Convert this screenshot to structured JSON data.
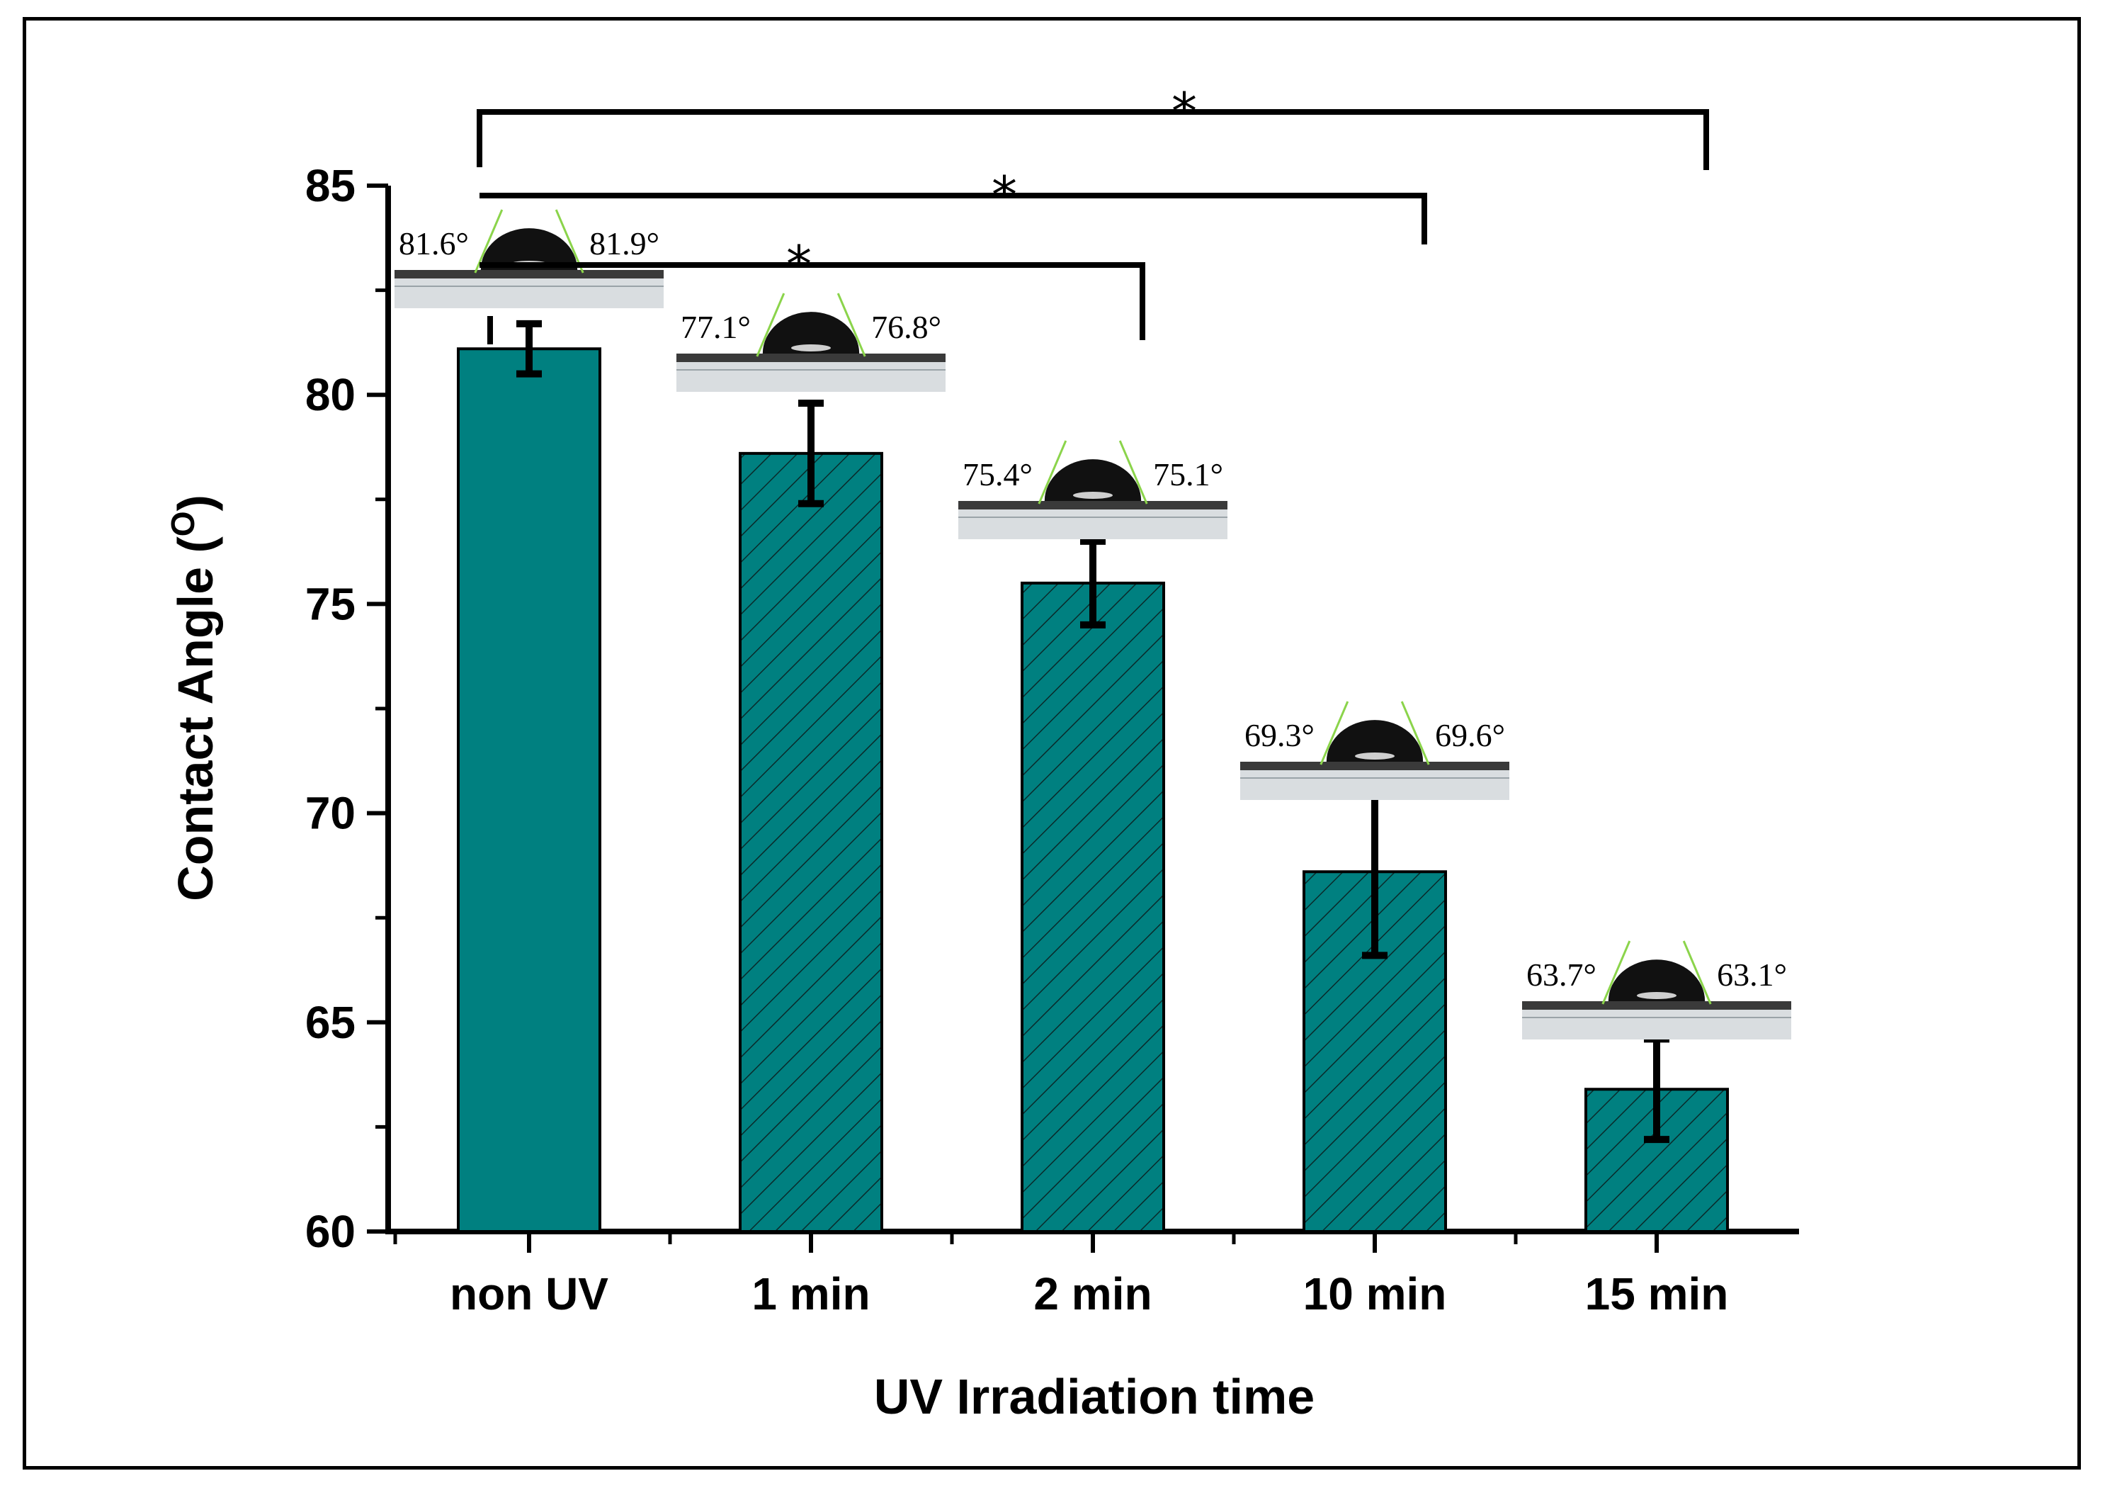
{
  "chart_data": {
    "type": "bar",
    "categories": [
      "non UV",
      "1 min",
      "2 min",
      "10 min",
      "15 min"
    ],
    "values": [
      81.1,
      78.6,
      75.5,
      68.6,
      63.4
    ],
    "errors": [
      0.6,
      1.2,
      1.0,
      2.0,
      1.2
    ],
    "xlabel": "UV Irradiation time",
    "ylabel": "Contact Angle (°)",
    "ylabel_main": "Contact Angle (",
    "ylabel_sup": "O",
    "ylabel_close": ")",
    "ylim": [
      60,
      85
    ],
    "yticks": [
      60,
      65,
      70,
      75,
      80,
      85
    ],
    "bar_fill": "#008080",
    "bar_pattern": [
      "solid",
      "hatched",
      "hatched",
      "hatched",
      "hatched"
    ],
    "droplet_angles": [
      {
        "left": "81.6°",
        "right": "81.9°"
      },
      {
        "left": "77.1°",
        "right": "76.8°"
      },
      {
        "left": "75.4°",
        "right": "75.1°"
      },
      {
        "left": "69.3°",
        "right": "69.6°"
      },
      {
        "left": "63.7°",
        "right": "63.1°"
      }
    ],
    "significance": [
      {
        "from": "non UV",
        "to": "2 min",
        "label": "*"
      },
      {
        "from": "non UV",
        "to": "10 min",
        "label": "*"
      },
      {
        "from": "non UV",
        "to": "15 min",
        "label": "*"
      }
    ]
  }
}
